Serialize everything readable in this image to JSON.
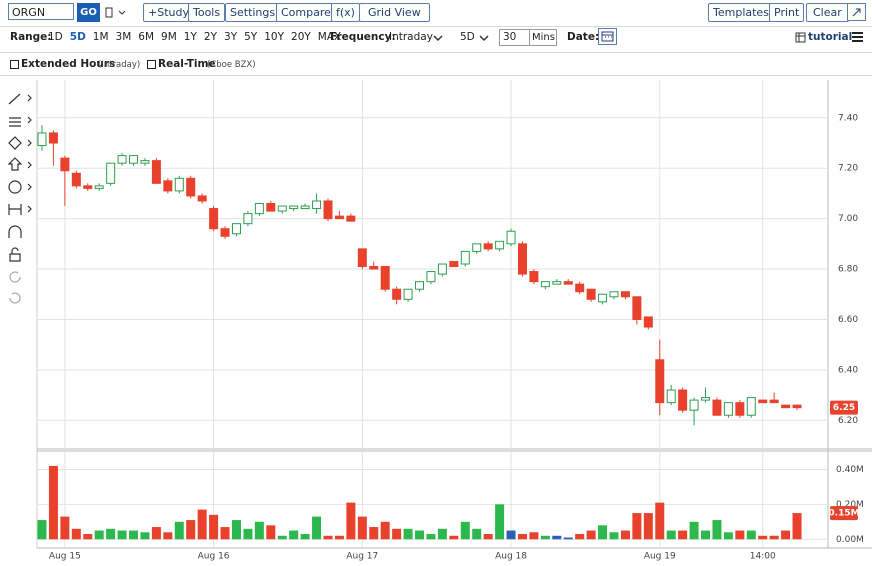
{
  "toolbar": {
    "symbol": "ORGN",
    "go": "GO",
    "buttons": [
      "+Study",
      "Tools",
      "Settings",
      "Compare",
      "f(x)",
      "Grid View"
    ],
    "right_buttons": [
      "Templates",
      "Print",
      "Clear"
    ]
  },
  "range": {
    "label": "Range:",
    "options": [
      "1D",
      "5D",
      "1M",
      "3M",
      "6M",
      "9M",
      "1Y",
      "2Y",
      "3Y",
      "5Y",
      "10Y",
      "20Y",
      "MAX"
    ],
    "selected_index": 1
  },
  "frequency": {
    "label": "Frequency:",
    "value": "Intraday",
    "period": "5D",
    "interval": "30",
    "unit": "Mins"
  },
  "date": {
    "label": "Date:"
  },
  "tutorial": "tutorial",
  "options": {
    "extended": "Extended Hours",
    "extended_note": "(Intraday)",
    "realtime": "Real-Time",
    "realtime_note": "(Cboe BZX)"
  },
  "chart_data": {
    "type": "candlestick",
    "categories": [
      null,
      null,
      "Aug 15",
      null,
      null,
      null,
      null,
      null,
      null,
      null,
      null,
      null,
      null,
      null,
      null,
      "Aug 16",
      null,
      null,
      null,
      null,
      null,
      null,
      null,
      null,
      null,
      null,
      null,
      null,
      "Aug 17",
      null,
      null,
      null,
      null,
      null,
      null,
      null,
      null,
      null,
      null,
      null,
      null,
      "Aug 18",
      null,
      null,
      null,
      null,
      null,
      null,
      null,
      null,
      null,
      null,
      null,
      null,
      "Aug 19",
      null,
      null,
      null,
      null,
      null,
      null,
      null,
      null,
      "14:00",
      null,
      null,
      null
    ],
    "open": [
      7.29,
      7.34,
      7.24,
      7.18,
      7.13,
      7.12,
      7.14,
      7.22,
      7.22,
      7.22,
      7.23,
      7.15,
      7.11,
      7.16,
      7.09,
      7.04,
      6.96,
      6.94,
      6.98,
      7.02,
      7.06,
      7.03,
      7.04,
      7.04,
      7.04,
      7.07,
      7.01,
      7.01,
      6.88,
      6.81,
      6.81,
      6.72,
      6.68,
      6.72,
      6.75,
      6.78,
      6.83,
      6.82,
      6.87,
      6.9,
      6.88,
      6.9,
      6.9,
      6.79,
      6.73,
      6.74,
      6.75,
      6.74,
      6.72,
      6.67,
      6.69,
      6.71,
      6.69,
      6.61,
      6.44,
      6.27,
      6.32,
      6.24,
      6.28,
      6.28,
      6.22,
      6.27,
      6.22,
      6.28,
      6.28,
      6.26,
      6.26
    ],
    "high": [
      7.37,
      7.35,
      7.25,
      7.19,
      7.14,
      7.14,
      7.22,
      7.26,
      7.25,
      7.24,
      7.24,
      7.16,
      7.17,
      7.17,
      7.1,
      7.05,
      6.97,
      6.98,
      7.03,
      7.06,
      7.07,
      7.05,
      7.05,
      7.06,
      7.1,
      7.08,
      7.03,
      7.02,
      6.88,
      6.83,
      6.81,
      6.73,
      6.72,
      6.75,
      6.79,
      6.82,
      6.83,
      6.87,
      6.9,
      6.91,
      6.91,
      6.96,
      6.91,
      6.8,
      6.75,
      6.76,
      6.76,
      6.75,
      6.72,
      6.7,
      6.71,
      6.71,
      6.69,
      6.61,
      6.52,
      6.34,
      6.33,
      6.29,
      6.33,
      6.29,
      6.27,
      6.28,
      6.29,
      6.28,
      6.31,
      6.26,
      6.26
    ],
    "low": [
      7.27,
      7.21,
      7.05,
      7.12,
      7.11,
      7.11,
      7.13,
      7.21,
      7.21,
      7.21,
      7.14,
      7.1,
      7.1,
      7.08,
      7.06,
      6.95,
      6.92,
      6.93,
      6.97,
      7.01,
      7.03,
      7.02,
      7.03,
      7.04,
      7.02,
      6.99,
      7.0,
      6.99,
      6.8,
      6.8,
      6.71,
      6.66,
      6.67,
      6.71,
      6.74,
      6.77,
      6.81,
      6.81,
      6.86,
      6.87,
      6.87,
      6.89,
      6.77,
      6.74,
      6.72,
      6.74,
      6.74,
      6.7,
      6.67,
      6.66,
      6.68,
      6.68,
      6.58,
      6.56,
      6.22,
      6.26,
      6.23,
      6.18,
      6.27,
      6.22,
      6.21,
      6.21,
      6.21,
      6.27,
      6.27,
      6.25,
      6.24
    ],
    "close": [
      7.34,
      7.3,
      7.19,
      7.13,
      7.12,
      7.13,
      7.22,
      7.25,
      7.25,
      7.23,
      7.14,
      7.11,
      7.16,
      7.09,
      7.07,
      6.96,
      6.93,
      6.98,
      7.02,
      7.06,
      7.03,
      7.05,
      7.05,
      7.05,
      7.07,
      7.0,
      7.0,
      6.99,
      6.81,
      6.8,
      6.72,
      6.68,
      6.72,
      6.75,
      6.79,
      6.82,
      6.81,
      6.87,
      6.9,
      6.88,
      6.91,
      6.95,
      6.78,
      6.75,
      6.75,
      6.75,
      6.74,
      6.71,
      6.68,
      6.7,
      6.71,
      6.69,
      6.6,
      6.57,
      6.27,
      6.32,
      6.24,
      6.28,
      6.29,
      6.22,
      6.27,
      6.22,
      6.29,
      6.27,
      6.27,
      6.25,
      6.25
    ],
    "up_color": "#2e9e4f",
    "down_color": "#e8412c",
    "ylim": [
      6.09,
      7.55
    ],
    "yticks": [
      {
        "value": 6.2,
        "label": "6.20"
      },
      {
        "value": 6.4,
        "label": "6.40"
      },
      {
        "value": 6.6,
        "label": "6.60"
      },
      {
        "value": 6.8,
        "label": "6.80"
      },
      {
        "value": 7.0,
        "label": "7.00"
      },
      {
        "value": 7.2,
        "label": "7.20"
      },
      {
        "value": 7.4,
        "label": "7.40"
      }
    ],
    "grid": true,
    "last_price": {
      "value": 6.25,
      "label": "6.25"
    },
    "volume": {
      "type": "bar",
      "values": [
        0.11,
        0.42,
        0.13,
        0.06,
        0.03,
        0.05,
        0.06,
        0.05,
        0.05,
        0.04,
        0.07,
        0.04,
        0.1,
        0.11,
        0.17,
        0.14,
        0.07,
        0.11,
        0.06,
        0.1,
        0.08,
        0.02,
        0.05,
        0.03,
        0.13,
        0.02,
        0.02,
        0.21,
        0.13,
        0.07,
        0.1,
        0.06,
        0.06,
        0.05,
        0.03,
        0.06,
        0.02,
        0.1,
        0.06,
        0.03,
        0.2,
        0.05,
        0.03,
        0.04,
        0.02,
        0.02,
        0.01,
        0.03,
        0.05,
        0.08,
        0.04,
        0.05,
        0.15,
        0.15,
        0.21,
        0.05,
        0.05,
        0.1,
        0.05,
        0.11,
        0.04,
        0.05,
        0.05,
        0.02,
        0.02,
        0.05,
        0.15
      ],
      "colors": [
        "#2db84d",
        "#e8412c",
        "#e8412c",
        "#e8412c",
        "#e8412c",
        "#2db84d",
        "#2db84d",
        "#2db84d",
        "#2db84d",
        "#2db84d",
        "#e8412c",
        "#e8412c",
        "#2db84d",
        "#e8412c",
        "#e8412c",
        "#e8412c",
        "#e8412c",
        "#2db84d",
        "#2db84d",
        "#2db84d",
        "#e8412c",
        "#2db84d",
        "#2db84d",
        "#2db84d",
        "#2db84d",
        "#e8412c",
        "#e8412c",
        "#e8412c",
        "#e8412c",
        "#e8412c",
        "#e8412c",
        "#e8412c",
        "#2db84d",
        "#2db84d",
        "#2db84d",
        "#2db84d",
        "#e8412c",
        "#2db84d",
        "#2db84d",
        "#e8412c",
        "#2db84d",
        "#2f5fb3",
        "#e8412c",
        "#e8412c",
        "#2db84d",
        "#2f5fb3",
        "#2f5fb3",
        "#e8412c",
        "#e8412c",
        "#2db84d",
        "#2db84d",
        "#e8412c",
        "#e8412c",
        "#e8412c",
        "#e8412c",
        "#2db84d",
        "#e8412c",
        "#2db84d",
        "#2db84d",
        "#2db84d",
        "#2db84d",
        "#e8412c",
        "#2db84d",
        "#e8412c",
        "#e8412c",
        "#e8412c",
        "#e8412c"
      ],
      "ylim": [
        -0.05,
        0.5
      ],
      "yticks": [
        {
          "value": 0,
          "label": "0.00M"
        },
        {
          "value": 0.2,
          "label": "0.20M"
        },
        {
          "value": 0.4,
          "label": "0.40M"
        }
      ],
      "last": {
        "value": 0.15,
        "label": "0.15M"
      }
    }
  }
}
